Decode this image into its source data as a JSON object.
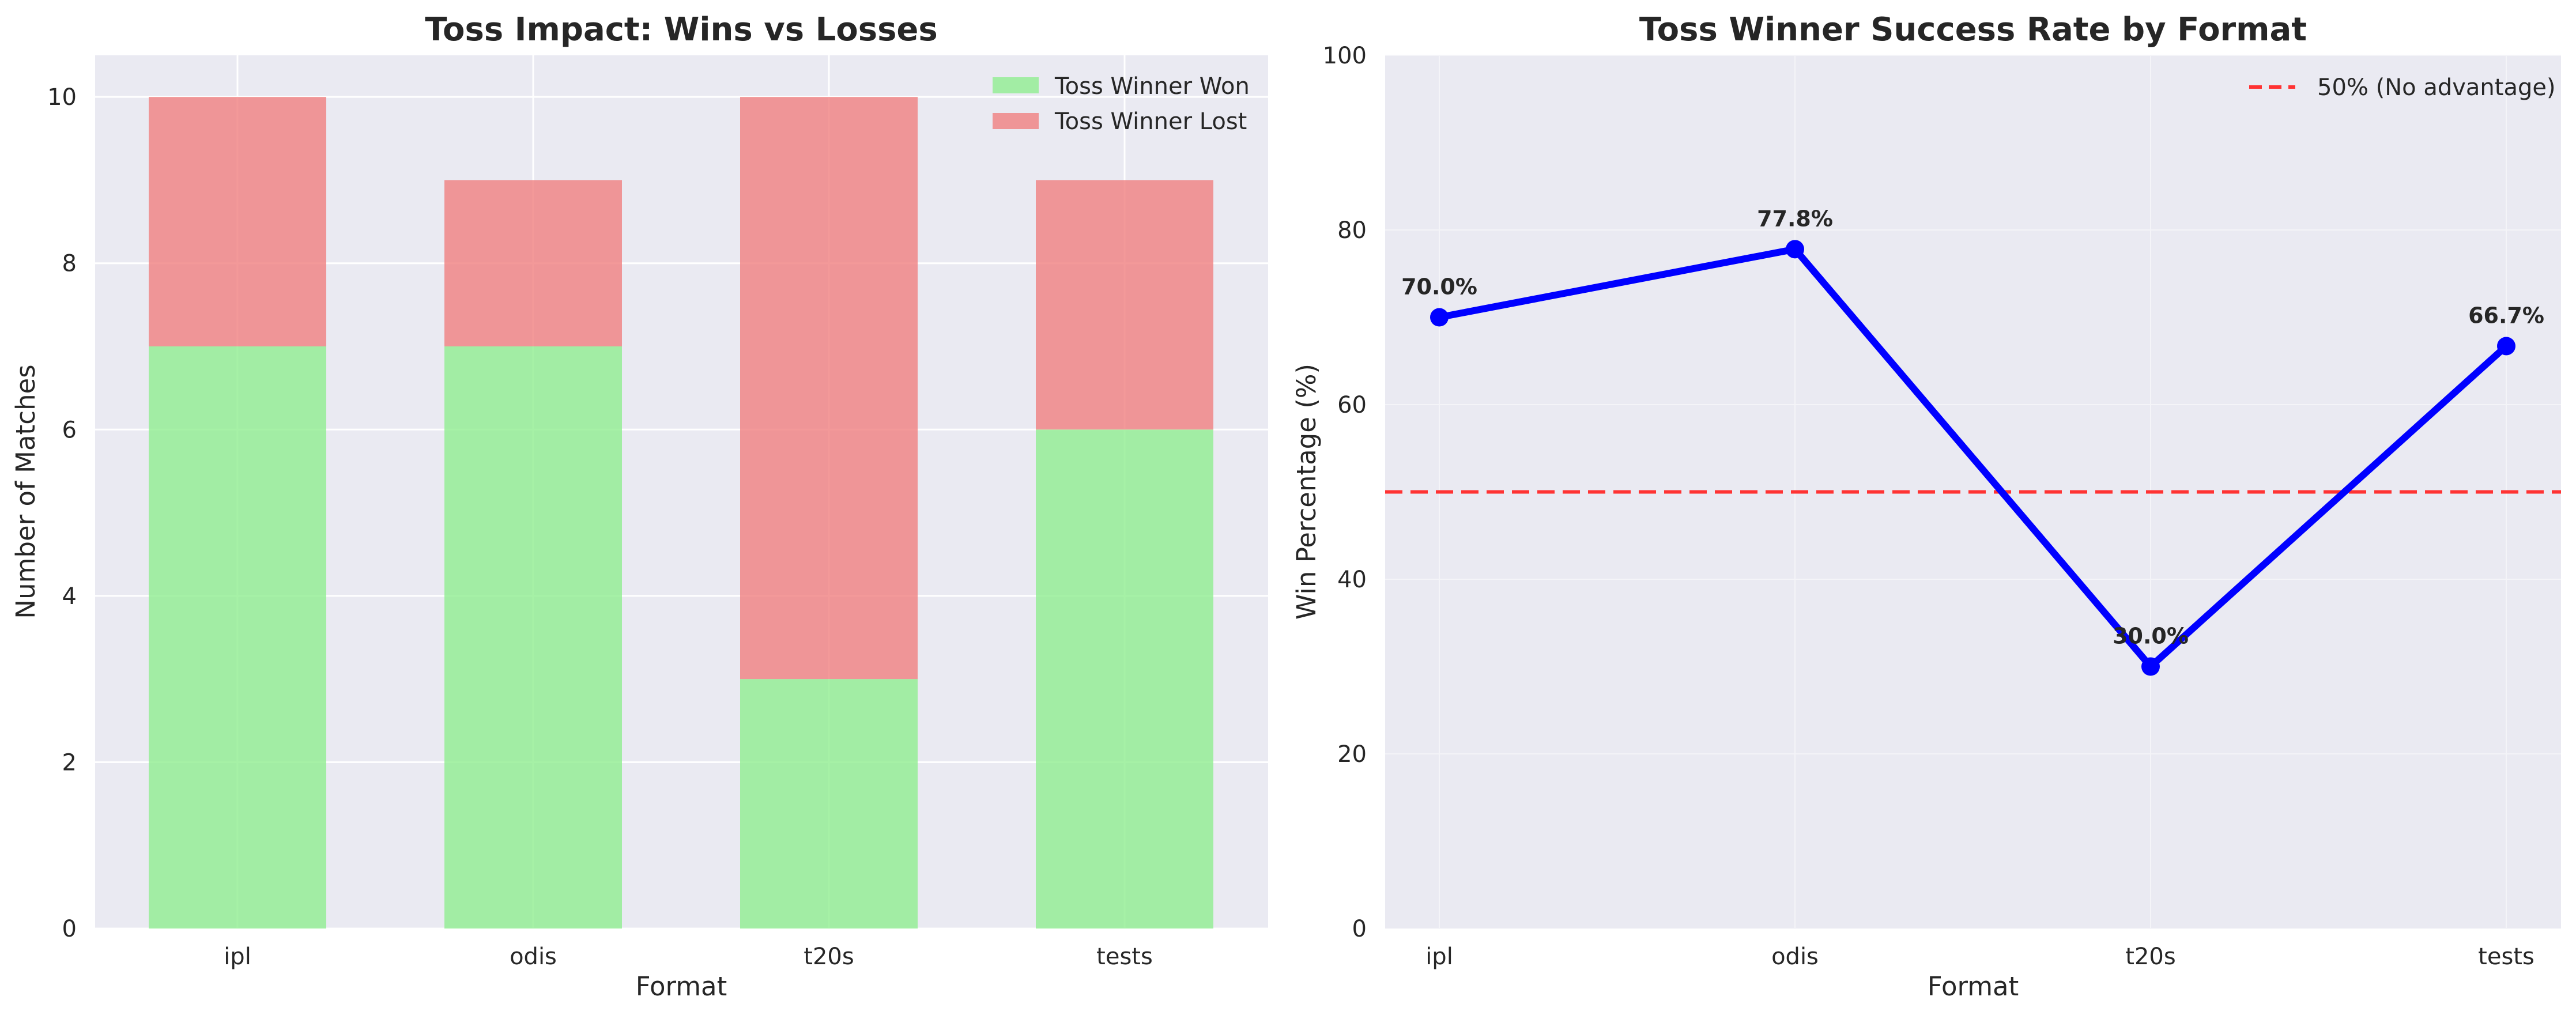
{
  "chart_data": [
    {
      "type": "bar",
      "stacked": true,
      "title": "Toss Impact: Wins vs Losses",
      "xlabel": "Format",
      "ylabel": "Number of Matches",
      "categories": [
        "ipl",
        "odis",
        "t20s",
        "tests"
      ],
      "series": [
        {
          "name": "Toss Winner Won",
          "values": [
            7,
            7,
            3,
            6
          ],
          "color": "#90ee90"
        },
        {
          "name": "Toss Winner Lost",
          "values": [
            3,
            2,
            7,
            3
          ],
          "color": "#f08080"
        }
      ],
      "ylim": [
        0,
        10.5
      ],
      "yticks": [
        0,
        2,
        4,
        6,
        8,
        10
      ],
      "grid": true,
      "legend_position": "top-right",
      "background": "#eaeaf2"
    },
    {
      "type": "line",
      "title": "Toss Winner Success Rate by Format",
      "xlabel": "Format",
      "ylabel": "Win Percentage (%)",
      "categories": [
        "ipl",
        "odis",
        "t20s",
        "tests"
      ],
      "series": [
        {
          "values": [
            70.0,
            77.8,
            30.0,
            66.7
          ],
          "labels": [
            "70.0%",
            "77.8%",
            "30.0%",
            "66.7%"
          ],
          "color": "#0000ff"
        }
      ],
      "reference_line": {
        "value": 50,
        "label": "50% (No advantage)",
        "color": "#ff3333",
        "style": "dashed"
      },
      "ylim": [
        0,
        100
      ],
      "yticks": [
        0,
        20,
        40,
        60,
        80,
        100
      ],
      "grid": true,
      "legend_position": "top-right",
      "background": "#eaeaf2"
    }
  ]
}
